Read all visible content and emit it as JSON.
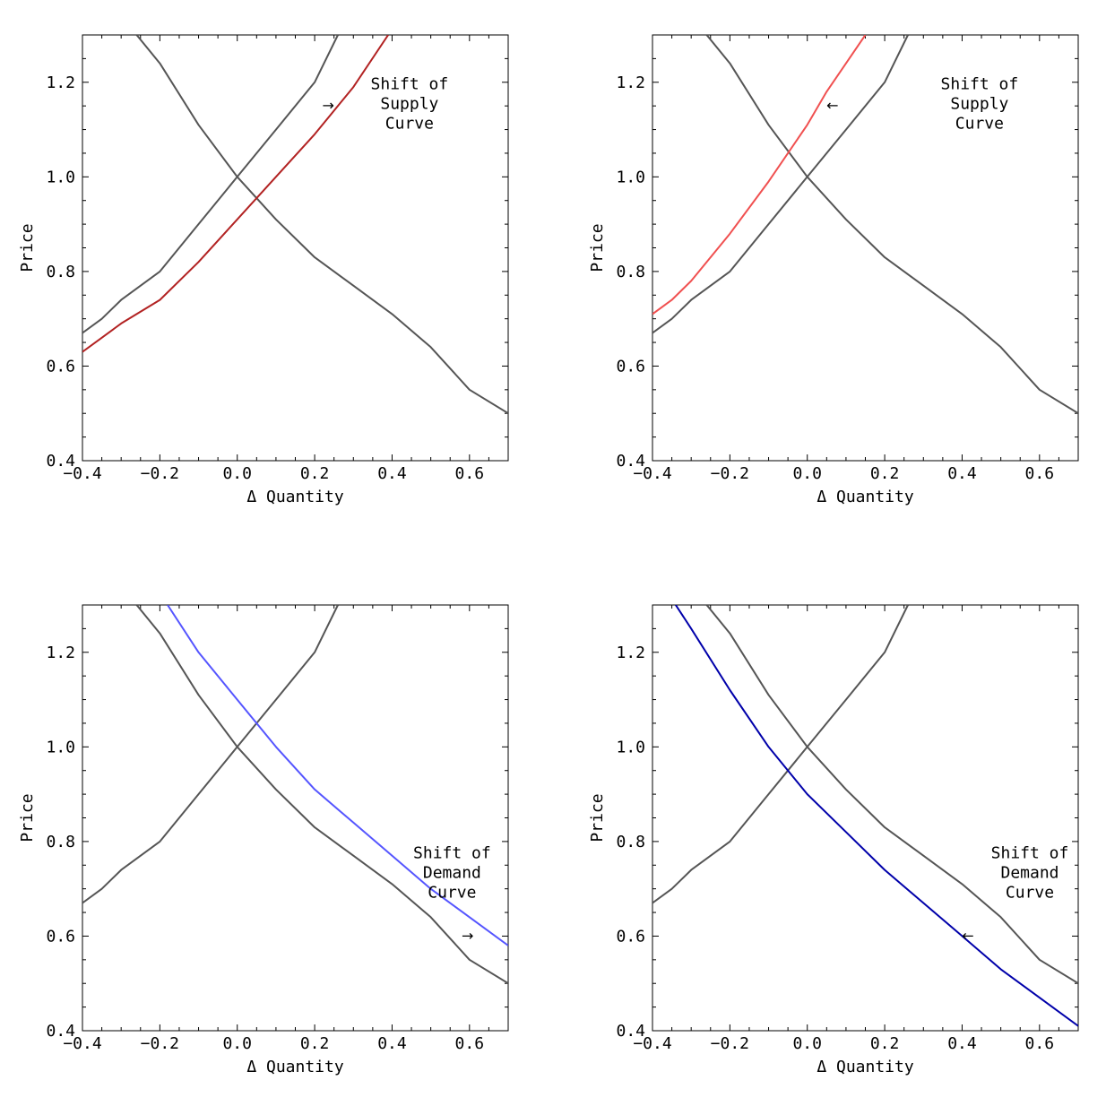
{
  "chart_data": [
    {
      "type": "line",
      "xlabel": "Δ Quantity",
      "ylabel": "Price",
      "xlim": [
        -0.4,
        0.7
      ],
      "ylim": [
        0.4,
        1.3
      ],
      "x_ticks": [
        "-0.4",
        "-0.2",
        "0.0",
        "0.2",
        "0.4",
        "0.6"
      ],
      "y_ticks": [
        "0.4",
        "0.6",
        "0.8",
        "1.0",
        "1.2"
      ],
      "annotation": [
        "Shift of",
        "Supply",
        "Curve"
      ],
      "arrow": "→",
      "series": [
        {
          "role": "original-supply",
          "color": "#555555",
          "x": [
            -0.4,
            -0.35,
            -0.3,
            -0.2,
            -0.1,
            0.0,
            0.1,
            0.2,
            0.26
          ],
          "y": [
            0.67,
            0.7,
            0.74,
            0.8,
            0.9,
            1.0,
            1.1,
            1.2,
            1.3
          ]
        },
        {
          "role": "original-demand",
          "color": "#555555",
          "x": [
            -0.26,
            -0.2,
            -0.1,
            0.0,
            0.1,
            0.2,
            0.3,
            0.4,
            0.5,
            0.6,
            0.7
          ],
          "y": [
            1.3,
            1.24,
            1.11,
            1.0,
            0.91,
            0.83,
            0.77,
            0.71,
            0.64,
            0.55,
            0.5
          ]
        },
        {
          "role": "shifted-supply",
          "color": "#b22222",
          "x": [
            -0.4,
            -0.35,
            -0.3,
            -0.2,
            -0.1,
            0.0,
            0.1,
            0.2,
            0.3,
            0.39
          ],
          "y": [
            0.63,
            0.66,
            0.69,
            0.74,
            0.82,
            0.91,
            1.0,
            1.09,
            1.19,
            1.3
          ]
        }
      ]
    },
    {
      "type": "line",
      "xlabel": "Δ Quantity",
      "ylabel": "Price",
      "xlim": [
        -0.4,
        0.7
      ],
      "ylim": [
        0.4,
        1.3
      ],
      "x_ticks": [
        "-0.4",
        "-0.2",
        "0.0",
        "0.2",
        "0.4",
        "0.6"
      ],
      "y_ticks": [
        "0.4",
        "0.6",
        "0.8",
        "1.0",
        "1.2"
      ],
      "annotation": [
        "Shift of",
        "Supply",
        "Curve"
      ],
      "arrow": "←",
      "series": [
        {
          "role": "original-supply",
          "color": "#555555",
          "x": [
            -0.4,
            -0.35,
            -0.3,
            -0.2,
            -0.1,
            0.0,
            0.1,
            0.2,
            0.26
          ],
          "y": [
            0.67,
            0.7,
            0.74,
            0.8,
            0.9,
            1.0,
            1.1,
            1.2,
            1.3
          ]
        },
        {
          "role": "original-demand",
          "color": "#555555",
          "x": [
            -0.26,
            -0.2,
            -0.1,
            0.0,
            0.1,
            0.2,
            0.3,
            0.4,
            0.5,
            0.6,
            0.7
          ],
          "y": [
            1.3,
            1.24,
            1.11,
            1.0,
            0.91,
            0.83,
            0.77,
            0.71,
            0.64,
            0.55,
            0.5
          ]
        },
        {
          "role": "shifted-supply",
          "color": "#f05050",
          "x": [
            -0.4,
            -0.35,
            -0.3,
            -0.2,
            -0.1,
            0.0,
            0.05,
            0.1,
            0.15
          ],
          "y": [
            0.71,
            0.74,
            0.78,
            0.88,
            0.99,
            1.11,
            1.18,
            1.24,
            1.3
          ]
        }
      ]
    },
    {
      "type": "line",
      "xlabel": "Δ Quantity",
      "ylabel": "Price",
      "xlim": [
        -0.4,
        0.7
      ],
      "ylim": [
        0.4,
        1.3
      ],
      "x_ticks": [
        "-0.4",
        "-0.2",
        "0.0",
        "0.2",
        "0.4",
        "0.6"
      ],
      "y_ticks": [
        "0.4",
        "0.6",
        "0.8",
        "1.0",
        "1.2"
      ],
      "annotation": [
        "Shift of",
        "Demand",
        "Curve"
      ],
      "arrow": "→",
      "series": [
        {
          "role": "original-supply",
          "color": "#555555",
          "x": [
            -0.4,
            -0.35,
            -0.3,
            -0.2,
            -0.1,
            0.0,
            0.1,
            0.2,
            0.26
          ],
          "y": [
            0.67,
            0.7,
            0.74,
            0.8,
            0.9,
            1.0,
            1.1,
            1.2,
            1.3
          ]
        },
        {
          "role": "original-demand",
          "color": "#555555",
          "x": [
            -0.26,
            -0.2,
            -0.1,
            0.0,
            0.1,
            0.2,
            0.3,
            0.4,
            0.5,
            0.6,
            0.7
          ],
          "y": [
            1.3,
            1.24,
            1.11,
            1.0,
            0.91,
            0.83,
            0.77,
            0.71,
            0.64,
            0.55,
            0.5
          ]
        },
        {
          "role": "shifted-demand",
          "color": "#5555ff",
          "x": [
            -0.18,
            -0.1,
            0.0,
            0.1,
            0.2,
            0.3,
            0.4,
            0.5,
            0.6,
            0.7
          ],
          "y": [
            1.3,
            1.2,
            1.1,
            1.0,
            0.91,
            0.84,
            0.77,
            0.7,
            0.64,
            0.58
          ]
        }
      ]
    },
    {
      "type": "line",
      "xlabel": "Δ Quantity",
      "ylabel": "Price",
      "xlim": [
        -0.4,
        0.7
      ],
      "ylim": [
        0.4,
        1.3
      ],
      "x_ticks": [
        "-0.4",
        "-0.2",
        "0.0",
        "0.2",
        "0.4",
        "0.6"
      ],
      "y_ticks": [
        "0.4",
        "0.6",
        "0.8",
        "1.0",
        "1.2"
      ],
      "annotation": [
        "Shift of",
        "Demand",
        "Curve"
      ],
      "arrow": "←",
      "series": [
        {
          "role": "original-supply",
          "color": "#555555",
          "x": [
            -0.4,
            -0.35,
            -0.3,
            -0.2,
            -0.1,
            0.0,
            0.1,
            0.2,
            0.26
          ],
          "y": [
            0.67,
            0.7,
            0.74,
            0.8,
            0.9,
            1.0,
            1.1,
            1.2,
            1.3
          ]
        },
        {
          "role": "original-demand",
          "color": "#555555",
          "x": [
            -0.26,
            -0.2,
            -0.1,
            0.0,
            0.1,
            0.2,
            0.3,
            0.4,
            0.5,
            0.6,
            0.7
          ],
          "y": [
            1.3,
            1.24,
            1.11,
            1.0,
            0.91,
            0.83,
            0.77,
            0.71,
            0.64,
            0.55,
            0.5
          ]
        },
        {
          "role": "shifted-demand",
          "color": "#0000aa",
          "x": [
            -0.34,
            -0.3,
            -0.2,
            -0.1,
            0.0,
            0.1,
            0.2,
            0.3,
            0.4,
            0.5,
            0.6,
            0.7
          ],
          "y": [
            1.3,
            1.25,
            1.12,
            1.0,
            0.9,
            0.82,
            0.74,
            0.67,
            0.6,
            0.53,
            0.47,
            0.41
          ]
        }
      ]
    }
  ]
}
